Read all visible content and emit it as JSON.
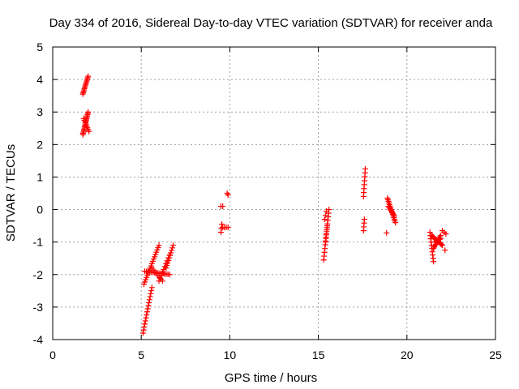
{
  "chart_data": {
    "type": "scatter",
    "title": "Day 334 of 2016, Sidereal Day-to-day VTEC variation (SDTVAR) for receiver anda",
    "xlabel": "GPS time / hours",
    "ylabel": "SDTVAR / TECUs",
    "xlim": [
      0,
      25
    ],
    "ylim": [
      -4,
      5
    ],
    "xticks": [
      0,
      5,
      10,
      15,
      20,
      25
    ],
    "yticks": [
      -4,
      -3,
      -2,
      -1,
      0,
      1,
      2,
      3,
      4,
      5
    ],
    "grid": true,
    "marker": "plus",
    "color": "#ff0000",
    "segments": [
      {
        "x0": 1.7,
        "y0": 3.55,
        "x1": 2.0,
        "y1": 4.1,
        "n": 14
      },
      {
        "x0": 1.7,
        "y0": 2.3,
        "x1": 2.0,
        "y1": 3.0,
        "n": 18
      },
      {
        "x0": 1.75,
        "y0": 2.8,
        "x1": 2.05,
        "y1": 2.4,
        "n": 8
      },
      {
        "x0": 5.1,
        "y0": -3.8,
        "x1": 5.6,
        "y1": -2.4,
        "n": 16
      },
      {
        "x0": 5.15,
        "y0": -2.3,
        "x1": 6.0,
        "y1": -1.1,
        "n": 18
      },
      {
        "x0": 5.2,
        "y0": -1.9,
        "x1": 6.6,
        "y1": -2.0,
        "n": 16
      },
      {
        "x0": 5.6,
        "y0": -1.8,
        "x1": 6.2,
        "y1": -2.2,
        "n": 8
      },
      {
        "x0": 6.0,
        "y0": -2.2,
        "x1": 6.6,
        "y1": -1.4,
        "n": 10
      },
      {
        "x0": 6.4,
        "y0": -1.8,
        "x1": 6.8,
        "y1": -1.1,
        "n": 10
      },
      {
        "x0": 9.5,
        "y0": 0.1,
        "x1": 9.6,
        "y1": 0.1,
        "n": 2
      },
      {
        "x0": 9.5,
        "y0": -0.7,
        "x1": 9.55,
        "y1": -0.45,
        "n": 3
      },
      {
        "x0": 9.6,
        "y0": -0.55,
        "x1": 9.9,
        "y1": -0.55,
        "n": 4
      },
      {
        "x0": 9.85,
        "y0": 0.5,
        "x1": 9.9,
        "y1": 0.45,
        "n": 2
      },
      {
        "x0": 15.3,
        "y0": -1.55,
        "x1": 15.5,
        "y1": -0.5,
        "n": 10
      },
      {
        "x0": 15.4,
        "y0": -1.0,
        "x1": 15.6,
        "y1": 0.0,
        "n": 10
      },
      {
        "x0": 15.35,
        "y0": -0.3,
        "x1": 15.45,
        "y1": -0.05,
        "n": 3
      },
      {
        "x0": 17.55,
        "y0": 0.4,
        "x1": 17.65,
        "y1": 1.25,
        "n": 8
      },
      {
        "x0": 17.55,
        "y0": -0.65,
        "x1": 17.6,
        "y1": -0.3,
        "n": 4
      },
      {
        "x0": 18.9,
        "y0": 0.35,
        "x1": 19.35,
        "y1": -0.4,
        "n": 16
      },
      {
        "x0": 18.95,
        "y0": 0.1,
        "x1": 19.3,
        "y1": -0.2,
        "n": 8
      },
      {
        "x0": 18.85,
        "y0": -0.72,
        "x1": 18.85,
        "y1": -0.72,
        "n": 1
      },
      {
        "x0": 21.3,
        "y0": -0.7,
        "x1": 21.5,
        "y1": -1.6,
        "n": 10
      },
      {
        "x0": 21.4,
        "y0": -0.8,
        "x1": 22.0,
        "y1": -1.1,
        "n": 14
      },
      {
        "x0": 21.5,
        "y0": -1.2,
        "x1": 21.9,
        "y1": -0.8,
        "n": 10
      },
      {
        "x0": 21.6,
        "y0": -1.0,
        "x1": 21.9,
        "y1": -0.9,
        "n": 6
      },
      {
        "x0": 22.0,
        "y0": -0.65,
        "x1": 22.2,
        "y1": -0.75,
        "n": 3
      },
      {
        "x0": 22.15,
        "y0": -1.25,
        "x1": 22.15,
        "y1": -1.25,
        "n": 1
      }
    ]
  }
}
